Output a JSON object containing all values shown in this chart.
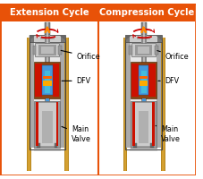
{
  "title_left": "Extension Cycle",
  "title_right": "Compression Cycle",
  "title_bg": "#E85208",
  "title_color": "#FFFFFF",
  "title_fontsize": 7.2,
  "border_color": "#E85208",
  "bg_color": "#FFFFFF",
  "label_orifice": "Orifice",
  "label_dfv": "DFV",
  "label_main_valve": "Main\nValve",
  "label_fontsize": 5.8,
  "divider_color": "#E85208",
  "orange_arrow": "#FF8800",
  "red_arrow": "#CC0000",
  "gold_rod": "#D4A030",
  "shaft_dark": "#444444",
  "shaft_mid": "#888888",
  "shaft_light": "#BBBBBB",
  "housing_outer": "#AAAAAA",
  "housing_inner": "#D8D8D8",
  "housing_bg": "#E8E8E8",
  "top_cap_dark": "#777777",
  "top_cap_light": "#CCCCCC",
  "red_valve": "#CC1100",
  "brown_valve": "#8B4513",
  "blue_highlight": "#4499DD",
  "cyan_highlight": "#44BBDD",
  "gray_dark": "#666666",
  "gray_mid": "#999999",
  "gray_light": "#CCCCCC",
  "white": "#FFFFFF",
  "black": "#000000"
}
